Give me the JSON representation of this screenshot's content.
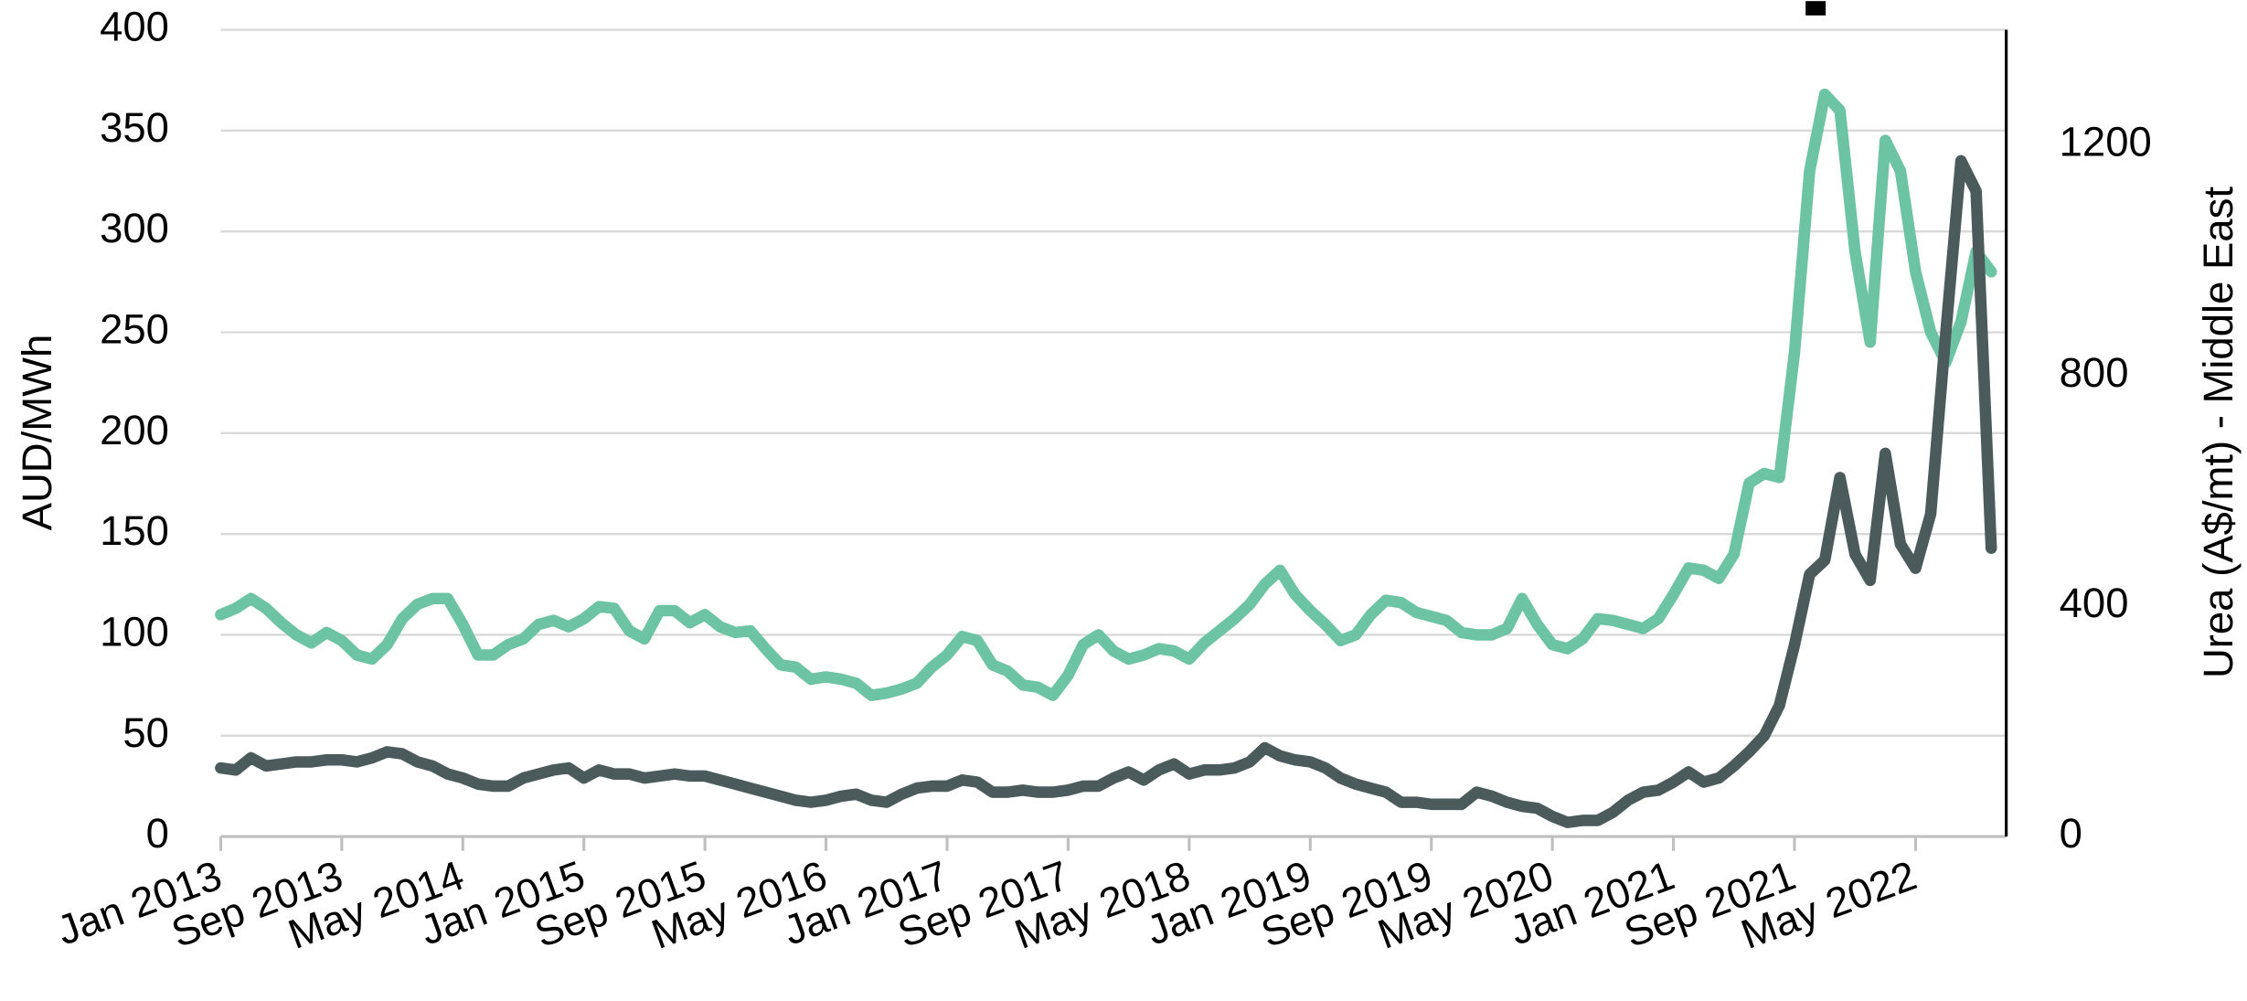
{
  "chart_data": {
    "type": "line",
    "y_label": "AUD/MWh",
    "y2_label": "Urea (A$/mt) - Middle East",
    "categories": [
      "Jan 2013",
      null,
      null,
      null,
      null,
      null,
      null,
      null,
      "Sep 2013",
      null,
      null,
      null,
      null,
      null,
      null,
      null,
      "May 2014",
      null,
      null,
      null,
      null,
      null,
      null,
      null,
      "Jan 2015",
      null,
      null,
      null,
      null,
      null,
      null,
      null,
      "Sep 2015",
      null,
      null,
      null,
      null,
      null,
      null,
      null,
      "May 2016",
      null,
      null,
      null,
      null,
      null,
      null,
      null,
      "Jan 2017",
      null,
      null,
      null,
      null,
      null,
      null,
      null,
      "Sep 2017",
      null,
      null,
      null,
      null,
      null,
      null,
      null,
      "May 2018",
      null,
      null,
      null,
      null,
      null,
      null,
      null,
      "Jan 2019",
      null,
      null,
      null,
      null,
      null,
      null,
      null,
      "Sep 2019",
      null,
      null,
      null,
      null,
      null,
      null,
      null,
      "May 2020",
      null,
      null,
      null,
      null,
      null,
      null,
      null,
      "Jan 2021",
      null,
      null,
      null,
      null,
      null,
      null,
      null,
      "Sep 2021",
      null,
      null,
      null,
      null,
      null,
      null,
      null,
      "May 2022",
      null,
      null,
      null,
      null,
      null
    ],
    "series": [
      {
        "color": "#4b5b5b",
        "values": [
          34,
          33,
          39,
          35,
          36,
          37,
          37,
          38,
          38,
          37,
          39,
          42,
          41,
          37,
          35,
          31,
          29,
          26,
          25,
          25,
          29,
          31,
          33,
          34,
          29,
          33,
          31,
          31,
          29,
          30,
          31,
          30,
          30,
          28,
          26,
          24,
          22,
          20,
          18,
          17,
          18,
          20,
          21,
          18,
          17,
          21,
          24,
          25,
          25,
          28,
          27,
          22,
          22,
          23,
          22,
          22,
          23,
          25,
          25,
          29,
          32,
          28,
          33,
          36,
          31,
          33,
          33,
          34,
          37,
          44,
          40,
          38,
          37,
          34,
          29,
          26,
          24,
          22,
          17,
          17,
          16,
          16,
          16,
          22,
          20,
          17,
          15,
          14,
          10,
          7,
          8,
          8,
          12,
          18,
          22,
          23,
          27,
          32,
          27,
          29,
          35,
          42,
          50,
          65,
          95,
          130,
          137,
          178,
          140,
          127,
          190,
          145,
          133,
          160,
          250,
          335,
          320,
          143
        ]
      },
      {
        "color": "#6cc4a4",
        "axis": "y2",
        "values": [
          385,
          396,
          413,
          396,
          371,
          350,
          336,
          354,
          340,
          315,
          308,
          333,
          378,
          403,
          413,
          413,
          368,
          315,
          315,
          333,
          343,
          368,
          375,
          364,
          378,
          399,
          396,
          357,
          343,
          392,
          392,
          371,
          385,
          364,
          354,
          357,
          326,
          298,
          294,
          273,
          277,
          273,
          266,
          245,
          249,
          256,
          266,
          294,
          315,
          347,
          340,
          298,
          287,
          263,
          259,
          245,
          280,
          333,
          350,
          322,
          308,
          315,
          326,
          322,
          308,
          336,
          357,
          378,
          403,
          438,
          462,
          420,
          392,
          368,
          340,
          350,
          385,
          410,
          406,
          389,
          382,
          375,
          354,
          350,
          350,
          361,
          413,
          368,
          333,
          326,
          343,
          378,
          375,
          368,
          361,
          378,
          420,
          466,
          462,
          448,
          490,
          613,
          630,
          623,
          840,
          1155,
          1288,
          1260,
          1015,
          858,
          1208,
          1155,
          980,
          875,
          823,
          893,
          1015,
          980
        ]
      }
    ],
    "ylim": [
      0,
      400
    ],
    "yticks": [
      0,
      50,
      100,
      150,
      200,
      250,
      300,
      350,
      400
    ],
    "y2lim": [
      0,
      1400
    ],
    "y2ticks": [
      0,
      400,
      800,
      1200
    ],
    "grid": true
  }
}
